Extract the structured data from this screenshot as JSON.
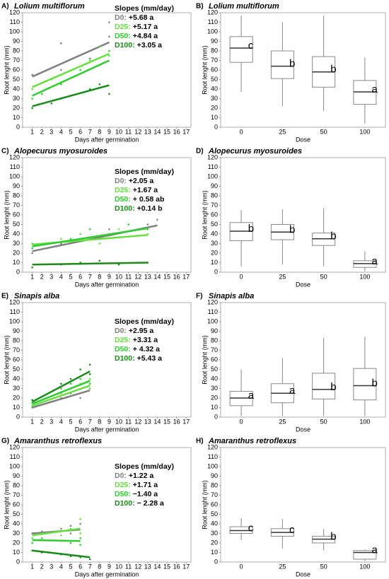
{
  "chart_data": [
    {
      "type": "scatter",
      "panel": "A)",
      "title": "Lolium multiflorum",
      "xlabel": "Days after germination",
      "ylabel": "Root lenght (mm)",
      "xlim": [
        0,
        17.5
      ],
      "xticks": [
        1,
        2,
        3,
        4,
        5,
        6,
        7,
        8,
        9,
        10,
        11,
        12,
        13,
        14,
        15,
        16,
        17
      ],
      "ylim": [
        0,
        120
      ],
      "yticks": [
        0,
        10,
        20,
        30,
        40,
        50,
        60,
        70,
        80,
        90,
        100,
        110,
        120
      ],
      "legend_title": "Slopes (mm/day)",
      "series": [
        {
          "name": "D0:",
          "slope": "+5.68 a",
          "color": "#808080",
          "x": [
            1,
            4,
            4,
            7,
            9,
            9
          ],
          "y": [
            55,
            60,
            88,
            72,
            95,
            110
          ],
          "fit_x": [
            1,
            9
          ],
          "fit_y": [
            53,
            89
          ]
        },
        {
          "name": "D25:",
          "slope": "+5.17 a",
          "color": "#66e040",
          "x": [
            1,
            3,
            4,
            7,
            8,
            9
          ],
          "y": [
            40,
            50,
            55,
            70,
            85,
            75
          ],
          "fit_x": [
            1,
            9
          ],
          "fit_y": [
            42,
            77
          ]
        },
        {
          "name": "D50:",
          "slope": "+4.84 a",
          "color": "#2ecc2e",
          "x": [
            1,
            2,
            4,
            6,
            8,
            9
          ],
          "y": [
            30,
            35,
            45,
            60,
            65,
            80
          ],
          "fit_x": [
            1,
            9
          ],
          "fit_y": [
            33,
            70
          ]
        },
        {
          "name": "D100:",
          "slope": "+3.05 a",
          "color": "#1a8a1a",
          "x": [
            1,
            3,
            4,
            7,
            8,
            9
          ],
          "y": [
            20,
            25,
            30,
            40,
            45,
            35
          ],
          "fit_x": [
            1,
            9
          ],
          "fit_y": [
            22,
            44
          ]
        }
      ]
    },
    {
      "type": "box",
      "panel": "B)",
      "title": "Lolium multiflorum",
      "xlabel": "Dose",
      "ylabel": "Root lenght (mm)",
      "ylim": [
        0,
        120
      ],
      "yticks": [
        0,
        10,
        20,
        30,
        40,
        50,
        60,
        70,
        80,
        90,
        100,
        110,
        120
      ],
      "categories": [
        "0",
        "25",
        "50",
        "100"
      ],
      "colors": [
        "#808080",
        "#66e040",
        "#2ecc2e",
        "#1a8a1a"
      ],
      "boxes": [
        {
          "whisker_low": 37,
          "q1": 68,
          "median": 83,
          "q3": 95,
          "whisker_high": 117,
          "letter": "c"
        },
        {
          "whisker_low": 22,
          "q1": 51,
          "median": 64,
          "q3": 80,
          "whisker_high": 110,
          "letter": "b"
        },
        {
          "whisker_low": 17,
          "q1": 42,
          "median": 58,
          "q3": 74,
          "whisker_high": 117,
          "letter": "b"
        },
        {
          "whisker_low": 4,
          "q1": 24,
          "median": 37,
          "q3": 49,
          "whisker_high": 73,
          "letter": "a"
        }
      ]
    },
    {
      "type": "scatter",
      "panel": "C)",
      "title": "Alopecurus myosuroides",
      "xlabel": "Days after germination",
      "ylabel": "Root lenght (mm)",
      "xlim": [
        0,
        17.5
      ],
      "xticks": [
        1,
        2,
        3,
        4,
        5,
        6,
        7,
        8,
        9,
        10,
        11,
        12,
        13,
        14,
        15,
        16,
        17
      ],
      "ylim": [
        0,
        120
      ],
      "yticks": [
        0,
        10,
        20,
        30,
        40,
        50,
        60,
        70,
        80,
        90,
        100,
        110,
        120
      ],
      "legend_title": "Slopes (mm/day)",
      "series": [
        {
          "name": "D0:",
          "slope": "+2.05 a",
          "color": "#808080",
          "x": [
            1,
            4,
            6,
            9,
            13,
            14
          ],
          "y": [
            20,
            30,
            35,
            45,
            50,
            55
          ],
          "fit_x": [
            1,
            14
          ],
          "fit_y": [
            22,
            49
          ]
        },
        {
          "name": "D25:",
          "slope": "+1.67 a",
          "color": "#66e040",
          "x": [
            1,
            4,
            6,
            8,
            10,
            13
          ],
          "y": [
            30,
            35,
            40,
            30,
            45,
            40
          ],
          "fit_x": [
            1,
            13
          ],
          "fit_y": [
            29,
            39
          ]
        },
        {
          "name": "D50:",
          "slope": "+ 0.58 ab",
          "color": "#2ecc2e",
          "x": [
            1,
            5,
            7,
            9,
            11,
            13
          ],
          "y": [
            25,
            35,
            45,
            40,
            50,
            45
          ],
          "fit_x": [
            1,
            13
          ],
          "fit_y": [
            27,
            46
          ]
        },
        {
          "name": "D100:",
          "slope": "+0.14 b",
          "color": "#1a8a1a",
          "x": [
            1,
            4,
            6,
            8,
            10,
            13
          ],
          "y": [
            5,
            8,
            10,
            12,
            8,
            10
          ],
          "fit_x": [
            1,
            13
          ],
          "fit_y": [
            8,
            10
          ]
        }
      ]
    },
    {
      "type": "box",
      "panel": "D)",
      "title": "Alopecurus myosuroides",
      "xlabel": "Dose",
      "ylabel": "Root lenght (mm)",
      "ylim": [
        0,
        120
      ],
      "yticks": [
        0,
        10,
        20,
        30,
        40,
        50,
        60,
        70,
        80,
        90,
        100,
        110,
        120
      ],
      "categories": [
        "0",
        "25",
        "50",
        "100"
      ],
      "colors": [
        "#808080",
        "#66e040",
        "#2ecc2e",
        "#1a8a1a"
      ],
      "boxes": [
        {
          "whisker_low": 6,
          "q1": 33,
          "median": 43,
          "q3": 52,
          "whisker_high": 65,
          "letter": "b"
        },
        {
          "whisker_low": 8,
          "q1": 34,
          "median": 42,
          "q3": 50,
          "whisker_high": 66,
          "letter": "b"
        },
        {
          "whisker_low": 6,
          "q1": 28,
          "median": 35,
          "q3": 41,
          "whisker_high": 67,
          "letter": "b"
        },
        {
          "whisker_low": 1,
          "q1": 5,
          "median": 9,
          "q3": 12,
          "whisker_high": 22,
          "letter": "a"
        }
      ]
    },
    {
      "type": "scatter",
      "panel": "E)",
      "title": "Sinapis alba",
      "xlabel": "Days after germination",
      "ylabel": "Root lenght (mm)",
      "xlim": [
        0,
        17.5
      ],
      "xticks": [
        1,
        2,
        3,
        4,
        5,
        6,
        7,
        8,
        9,
        10,
        11,
        12,
        13,
        14,
        15,
        16,
        17
      ],
      "ylim": [
        0,
        120
      ],
      "yticks": [
        0,
        10,
        20,
        30,
        40,
        50,
        60,
        70,
        80,
        90,
        100,
        110,
        120
      ],
      "legend_title": "Slopes (mm/day)",
      "series": [
        {
          "name": "D0:",
          "slope": "+2.95 a",
          "color": "#808080",
          "x": [
            1,
            4,
            5,
            6,
            7,
            7
          ],
          "y": [
            10,
            20,
            25,
            20,
            30,
            35
          ],
          "fit_x": [
            1,
            7
          ],
          "fit_y": [
            10,
            28
          ]
        },
        {
          "name": "D25:",
          "slope": "+3.31 a",
          "color": "#66e040",
          "x": [
            1,
            4,
            5,
            6,
            7,
            7
          ],
          "y": [
            12,
            25,
            30,
            35,
            30,
            40
          ],
          "fit_x": [
            1,
            7
          ],
          "fit_y": [
            12,
            33
          ]
        },
        {
          "name": "D50:",
          "slope": "+ 4.32 a",
          "color": "#2ecc2e",
          "x": [
            1,
            4,
            5,
            6,
            7,
            7
          ],
          "y": [
            15,
            30,
            35,
            40,
            45,
            35
          ],
          "fit_x": [
            1,
            7
          ],
          "fit_y": [
            14,
            38
          ]
        },
        {
          "name": "D100:",
          "slope": "+5.43 a",
          "color": "#1a8a1a",
          "x": [
            1,
            4,
            5,
            6,
            7,
            7
          ],
          "y": [
            18,
            35,
            40,
            50,
            55,
            45
          ],
          "fit_x": [
            1,
            7
          ],
          "fit_y": [
            16,
            48
          ]
        }
      ]
    },
    {
      "type": "box",
      "panel": "F)",
      "title": "Sinapis alba",
      "xlabel": "Dose",
      "ylabel": "Root lenght (mm)",
      "ylim": [
        0,
        120
      ],
      "yticks": [
        0,
        10,
        20,
        30,
        40,
        50,
        60,
        70,
        80,
        90,
        100,
        110,
        120
      ],
      "categories": [
        "0",
        "25",
        "50",
        "100"
      ],
      "colors": [
        "#808080",
        "#66e040",
        "#2ecc2e",
        "#1a8a1a"
      ],
      "boxes": [
        {
          "whisker_low": 1,
          "q1": 12,
          "median": 20,
          "q3": 27,
          "whisker_high": 50,
          "letter": "a"
        },
        {
          "whisker_low": 1,
          "q1": 15,
          "median": 25,
          "q3": 35,
          "whisker_high": 62,
          "letter": "a"
        },
        {
          "whisker_low": 1,
          "q1": 19,
          "median": 29,
          "q3": 46,
          "whisker_high": 83,
          "letter": "b"
        },
        {
          "whisker_low": 1,
          "q1": 18,
          "median": 33,
          "q3": 51,
          "whisker_high": 84,
          "letter": "b"
        }
      ]
    },
    {
      "type": "scatter",
      "panel": "G)",
      "title": "Amaranthus retroflexus",
      "xlabel": "Days after germination",
      "ylabel": "Root lenght (mm)",
      "xlim": [
        0,
        17.5
      ],
      "xticks": [
        1,
        2,
        3,
        4,
        5,
        6,
        7,
        8,
        9,
        10,
        11,
        12,
        13,
        14,
        15,
        16,
        17
      ],
      "ylim": [
        0,
        120
      ],
      "yticks": [
        0,
        10,
        20,
        30,
        40,
        50,
        60,
        70,
        80,
        90,
        100,
        110,
        120
      ],
      "legend_title": "Slopes (mm/day)",
      "series": [
        {
          "name": "D0:",
          "slope": "+1.22 a",
          "color": "#808080",
          "x": [
            1,
            2,
            4,
            5,
            5,
            6
          ],
          "y": [
            30,
            32,
            35,
            30,
            38,
            40
          ],
          "fit_x": [
            1,
            6
          ],
          "fit_y": [
            30,
            34
          ]
        },
        {
          "name": "D25:",
          "slope": "+1.71 a",
          "color": "#66e040",
          "x": [
            1,
            2,
            4,
            5,
            6,
            6
          ],
          "y": [
            25,
            30,
            28,
            35,
            30,
            45
          ],
          "fit_x": [
            1,
            6
          ],
          "fit_y": [
            28,
            35
          ]
        },
        {
          "name": "D50:",
          "slope": "−1.40 a",
          "color": "#2ecc2e",
          "x": [
            1,
            2,
            4,
            5,
            6,
            6
          ],
          "y": [
            20,
            25,
            22,
            20,
            25,
            18
          ],
          "fit_x": [
            1,
            6
          ],
          "fit_y": [
            23,
            22
          ]
        },
        {
          "name": "D100:",
          "slope": "− 2.28 a",
          "color": "#1a8a1a",
          "x": [
            1,
            2,
            4,
            5,
            6,
            7
          ],
          "y": [
            12,
            10,
            8,
            6,
            5,
            3
          ],
          "fit_x": [
            1,
            7
          ],
          "fit_y": [
            12,
            5
          ]
        }
      ]
    },
    {
      "type": "box",
      "panel": "H)",
      "title": "Amaranthus retroflexus",
      "xlabel": "Dose",
      "ylabel": "Root lenght (mm)",
      "ylim": [
        0,
        120
      ],
      "yticks": [
        0,
        10,
        20,
        30,
        40,
        50,
        60,
        70,
        80,
        90,
        100,
        110,
        120
      ],
      "categories": [
        "0",
        "25",
        "50",
        "100"
      ],
      "colors": [
        "#808080",
        "#66e040",
        "#2ecc2e",
        "#1a8a1a"
      ],
      "boxes": [
        {
          "whisker_low": 23,
          "q1": 30,
          "median": 33,
          "q3": 37,
          "whisker_high": 46,
          "letter": "c"
        },
        {
          "whisker_low": 14,
          "q1": 27,
          "median": 31,
          "q3": 35,
          "whisker_high": 45,
          "letter": "c"
        },
        {
          "whisker_low": 12,
          "q1": 20,
          "median": 24,
          "q3": 27,
          "whisker_high": 35,
          "letter": "b"
        },
        {
          "whisker_low": 1,
          "q1": 3,
          "median": 10,
          "q3": 12,
          "whisker_high": 13,
          "letter": "a"
        }
      ]
    }
  ]
}
